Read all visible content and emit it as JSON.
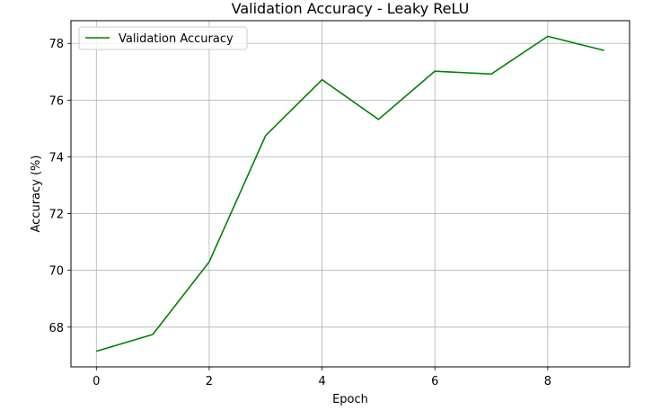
{
  "chart_data": {
    "type": "line",
    "title": "Validation Accuracy - Leaky ReLU",
    "xlabel": "Epoch",
    "ylabel": "Accuracy (%)",
    "xlim": [
      -0.45,
      9.45
    ],
    "ylim": [
      66.6,
      78.8
    ],
    "xticks": [
      0,
      2,
      4,
      6,
      8
    ],
    "yticks": [
      68,
      70,
      72,
      74,
      76,
      78
    ],
    "grid": true,
    "legend_position": "upper-left",
    "series": [
      {
        "name": "Validation Accuracy",
        "color": "#008000",
        "x": [
          0,
          1,
          2,
          3,
          4,
          5,
          6,
          7,
          8,
          9
        ],
        "y": [
          67.15,
          67.74,
          70.3,
          74.75,
          76.72,
          75.32,
          77.02,
          76.92,
          78.25,
          77.75
        ]
      }
    ]
  }
}
